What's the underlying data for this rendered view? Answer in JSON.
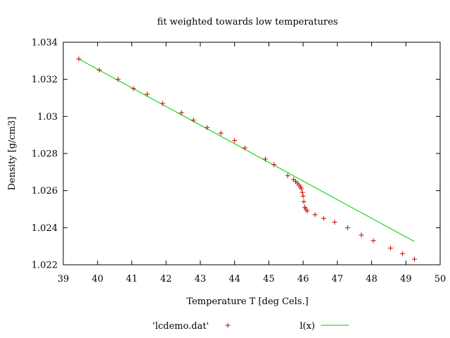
{
  "chart_data": {
    "type": "scatter",
    "title": "fit weighted towards low temperatures",
    "xlabel": "Temperature T  [deg Cels.]",
    "ylabel": "Density [g/cm3]",
    "xlim": [
      39,
      50
    ],
    "ylim": [
      1.022,
      1.034
    ],
    "xticks": [
      "39",
      "40",
      "41",
      "42",
      "43",
      "44",
      "45",
      "46",
      "47",
      "48",
      "49",
      "50"
    ],
    "xtick_values": [
      39,
      40,
      41,
      42,
      43,
      44,
      45,
      46,
      47,
      48,
      49,
      50
    ],
    "yticks": [
      "1.022",
      "1.024",
      "1.026",
      "1.028",
      "1.03",
      "1.032",
      "1.034"
    ],
    "ytick_values": [
      1.022,
      1.024,
      1.026,
      1.028,
      1.03,
      1.032,
      1.034
    ],
    "legend_position": "bottom",
    "colors": {
      "points": "#cc0000",
      "fit": "#00cc00",
      "axis": "#000000"
    },
    "series": [
      {
        "name": "'lcdemo.dat'",
        "kind": "points",
        "marker": "+",
        "points": [
          [
            39.45,
            1.0331
          ],
          [
            40.05,
            1.0325
          ],
          [
            40.6,
            1.032
          ],
          [
            41.05,
            1.0315
          ],
          [
            41.45,
            1.0312
          ],
          [
            41.9,
            1.0307
          ],
          [
            42.45,
            1.0302
          ],
          [
            42.8,
            1.0298
          ],
          [
            43.2,
            1.0294
          ],
          [
            43.6,
            1.0291
          ],
          [
            44.0,
            1.0287
          ],
          [
            44.3,
            1.0283
          ],
          [
            44.9,
            1.0277
          ],
          [
            45.15,
            1.0274
          ],
          [
            45.55,
            1.0268
          ],
          [
            45.72,
            1.0266
          ],
          [
            45.78,
            1.0265
          ],
          [
            45.83,
            1.0264
          ],
          [
            45.88,
            1.0263
          ],
          [
            45.92,
            1.0262
          ],
          [
            45.95,
            1.0261
          ],
          [
            45.98,
            1.0259
          ],
          [
            46.0,
            1.0257
          ],
          [
            46.02,
            1.0254
          ],
          [
            46.05,
            1.0251
          ],
          [
            46.08,
            1.025
          ],
          [
            46.12,
            1.0249
          ],
          [
            46.35,
            1.0247
          ],
          [
            46.6,
            1.0245
          ],
          [
            46.92,
            1.0243
          ],
          [
            47.3,
            1.024
          ],
          [
            47.7,
            1.0236
          ],
          [
            48.05,
            1.0233
          ],
          [
            48.55,
            1.0229
          ],
          [
            48.9,
            1.0226
          ],
          [
            49.25,
            1.0223
          ]
        ]
      },
      {
        "name": "l(x)",
        "kind": "line",
        "points": [
          [
            39.45,
            1.0331
          ],
          [
            49.25,
            1.02325
          ]
        ]
      }
    ]
  }
}
